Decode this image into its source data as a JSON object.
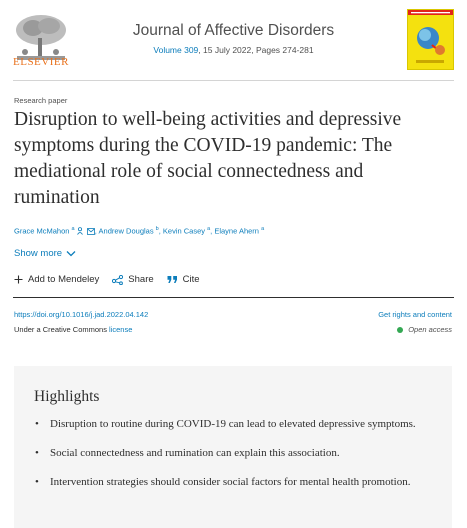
{
  "header": {
    "publisher": "ELSEVIER",
    "journal_title": "Journal of Affective Disorders",
    "volume_link": "Volume 309",
    "issue_info": ", 15 July 2022, Pages 274-281"
  },
  "article": {
    "type": "Research paper",
    "title": "Disruption to well-being activities and depressive symptoms during the COVID-19 pandemic: The mediational role of social connectedness and rumination",
    "authors": [
      {
        "name": "Grace McMahon",
        "sup": "a"
      },
      {
        "name": "Andrew Douglas",
        "sup": "b"
      },
      {
        "name": "Kevin Casey",
        "sup": "a"
      },
      {
        "name": "Elayne Ahern",
        "sup": "a"
      }
    ],
    "show_more": "Show more"
  },
  "actions": {
    "add_mendeley": "Add to Mendeley",
    "share": "Share",
    "cite": "Cite"
  },
  "meta": {
    "doi": "https://doi.org/10.1016/j.jad.2022.04.142",
    "rights": "Get rights and content",
    "license_prefix": "Under a Creative Commons ",
    "license_link": "license",
    "open_access": "Open access"
  },
  "highlights": {
    "title": "Highlights",
    "items": [
      "Disruption to routine during COVID-19 can lead to elevated depressive symptoms.",
      "Social connectedness and rumination can explain this association.",
      "Intervention strategies should consider social factors for mental health promotion."
    ]
  },
  "colors": {
    "link": "#0c7dbb",
    "elsevier_orange": "#e9711c",
    "cover_yellow": "#f4e10f",
    "open_access_green": "#34a853"
  }
}
